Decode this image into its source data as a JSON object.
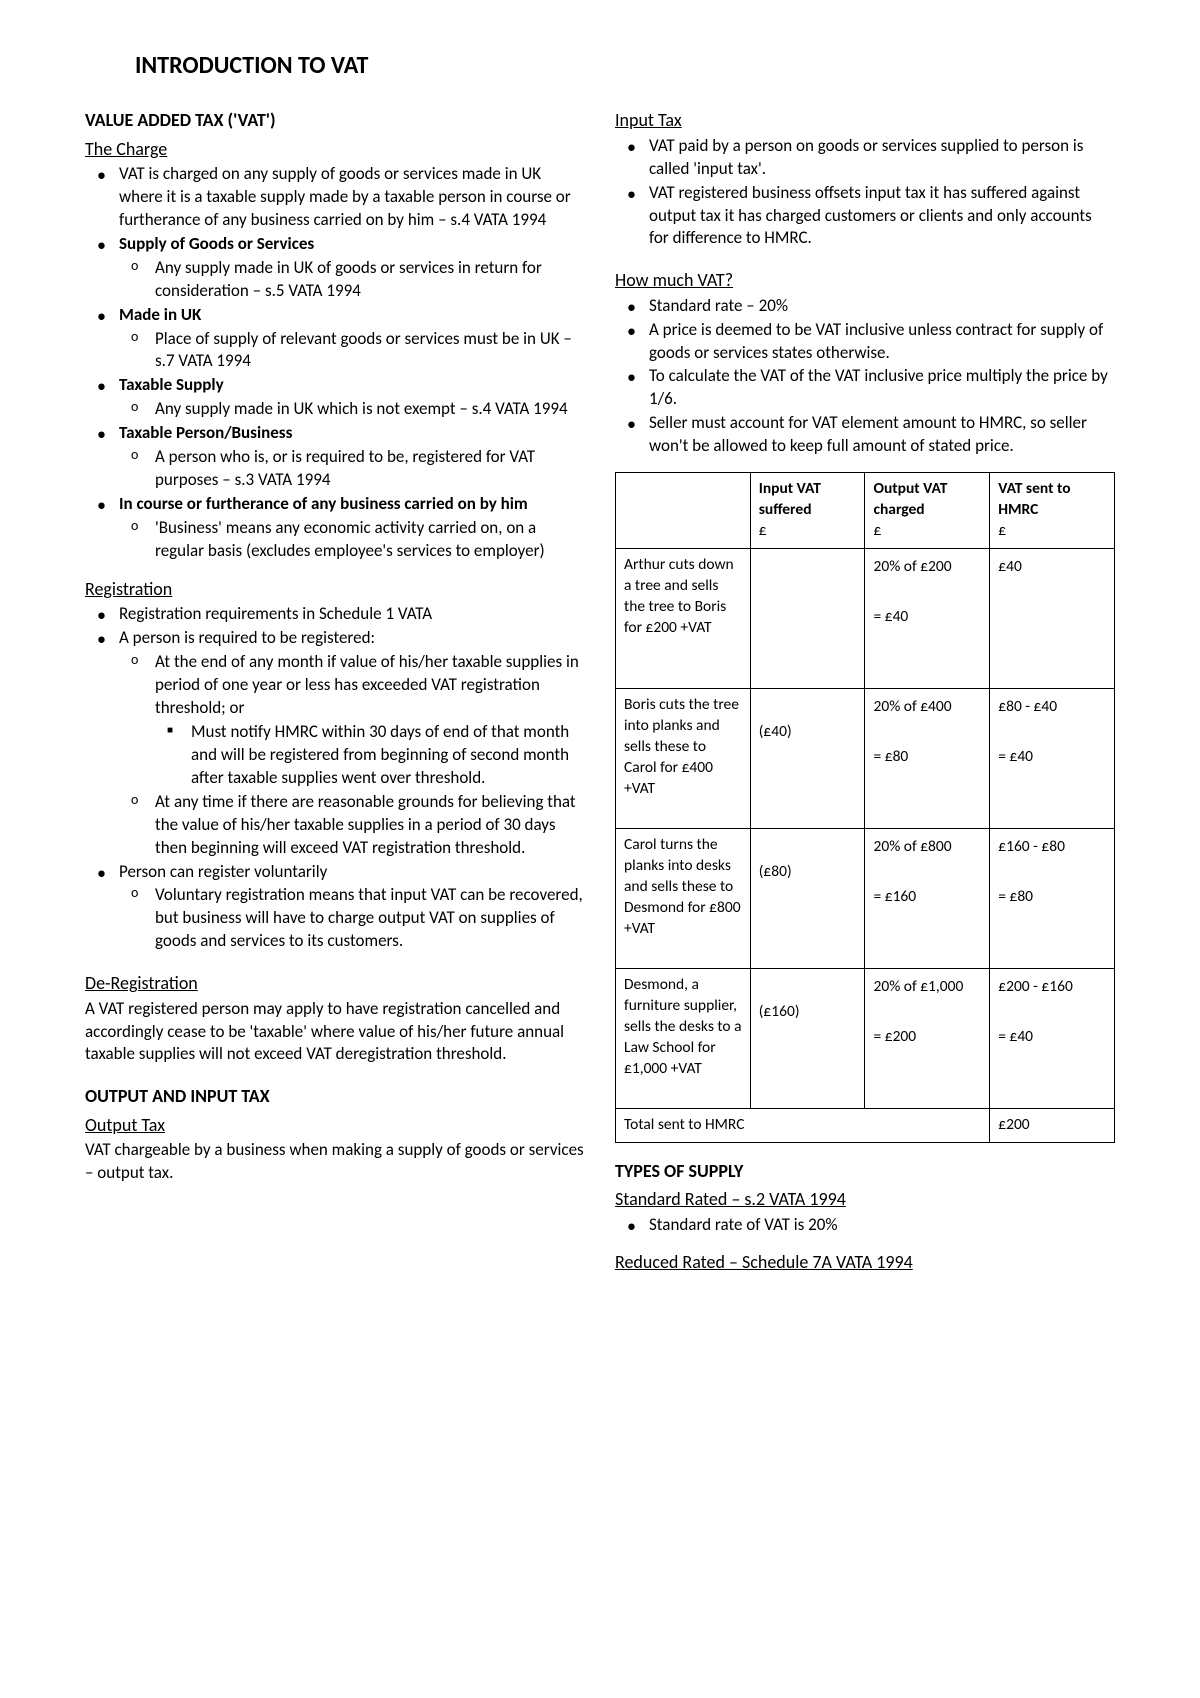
{
  "title": "INTRODUCTION TO VAT",
  "left": {
    "h1": "VALUE ADDED TAX ('VAT')",
    "charge": {
      "title": "The Charge",
      "p1": "VAT is charged on any supply of goods or services made in UK where it is a taxable supply made by a taxable person in course or furtherance of any business carried on by him – s.4 VATA 1994",
      "b2": "Supply of Goods or Services",
      "b2s1": "Any supply made in UK of goods or services in return for consideration – s.5 VATA 1994",
      "b3": "Made in UK",
      "b3s1": "Place of supply of relevant goods or services must be in UK – s.7 VATA 1994",
      "b4": "Taxable Supply",
      "b4s1": "Any supply made in UK which is not exempt – s.4 VATA 1994",
      "b5": "Taxable Person/Business",
      "b5s1": "A person who is, or is required to be, registered for VAT purposes – s.3 VATA 1994",
      "b6": "In course or furtherance of any business carried on by him",
      "b6s1": "'Business' means any economic activity carried on, on a regular basis (excludes employee's services to employer)"
    },
    "reg": {
      "title": "Registration",
      "p1": "Registration requirements in Schedule 1 VATA",
      "p2": "A person is required to be registered:",
      "p2s1": "At the end of any month if value of his/her taxable supplies in period of one year or less has exceeded VAT registration threshold; or",
      "p2s1a": "Must notify HMRC within 30 days of end of that month and will be registered from beginning of second month after taxable supplies went over threshold.",
      "p2s2": "At any time if there are reasonable grounds for believing that the value of his/her taxable supplies in a period of 30 days then beginning will exceed VAT registration threshold.",
      "p3": "Person can register voluntarily",
      "p3s1": "Voluntary registration means that input VAT can be recovered, but business will have to charge output VAT on supplies of goods and services to its customers."
    },
    "dereg": {
      "title": "De-Registration",
      "body": "A VAT registered person may apply to have registration cancelled and accordingly cease to be 'taxable' where value of his/her future annual taxable supplies will not exceed VAT deregistration threshold."
    },
    "outin": {
      "title": "OUTPUT AND INPUT TAX",
      "out_title": "Output Tax",
      "out_body": "VAT chargeable by a business when making a supply of goods or services – output tax."
    }
  },
  "right": {
    "input": {
      "title": "Input Tax",
      "p1": "VAT paid by a person on goods or services supplied to person is called 'input tax'.",
      "p2": "VAT registered business offsets input tax it has suffered against output tax it has charged customers or clients and only accounts for difference to HMRC."
    },
    "howmuch": {
      "title": "How much VAT?",
      "p1": "Standard rate – 20%",
      "p2": "A price is deemed to be VAT inclusive unless contract for supply of goods or services states otherwise.",
      "p3": "To calculate the VAT of the VAT inclusive price multiply the price by 1/6.",
      "p4": "Seller must account for VAT element amount to HMRC, so seller won't be allowed to keep full amount of stated price."
    },
    "table": {
      "headers": {
        "c1": "",
        "c2": "Input VAT suffered",
        "c2sub": "£",
        "c3": "Output VAT charged",
        "c3sub": "£",
        "c4": "VAT sent to HMRC",
        "c4sub": "£"
      },
      "rows": [
        {
          "desc": "Arthur cuts down a tree and sells the tree to Boris for £200 +VAT",
          "input": "",
          "output_l1": "20% of £200",
          "output_l2": "= £40",
          "sent_l1": "£40",
          "sent_l2": ""
        },
        {
          "desc": "Boris cuts the tree into planks and sells these to Carol for £400 +VAT",
          "input": "(£40)",
          "output_l1": "20% of £400",
          "output_l2": "= £80",
          "sent_l1": "£80 - £40",
          "sent_l2": "= £40"
        },
        {
          "desc": "Carol turns the planks into desks and sells these to Desmond for £800 +VAT",
          "input": "(£80)",
          "output_l1": "20% of £800",
          "output_l2": "= £160",
          "sent_l1": "£160 - £80",
          "sent_l2": "= £80"
        },
        {
          "desc": "Desmond, a furniture supplier, sells the desks to a Law School for £1,000 +VAT",
          "input": "(£160)",
          "output_l1": "20% of £1,000",
          "output_l2": "= £200",
          "sent_l1": "£200 - £160",
          "sent_l2": "= £40"
        }
      ],
      "total_label": "Total sent to HMRC",
      "total_value": "£200"
    },
    "types": {
      "title": "TYPES OF SUPPLY",
      "std_title": "Standard Rated – s.2 VATA 1994",
      "std_p1": "Standard rate of VAT is 20%",
      "red_title": "Reduced Rated – Schedule 7A VATA 1994"
    }
  }
}
